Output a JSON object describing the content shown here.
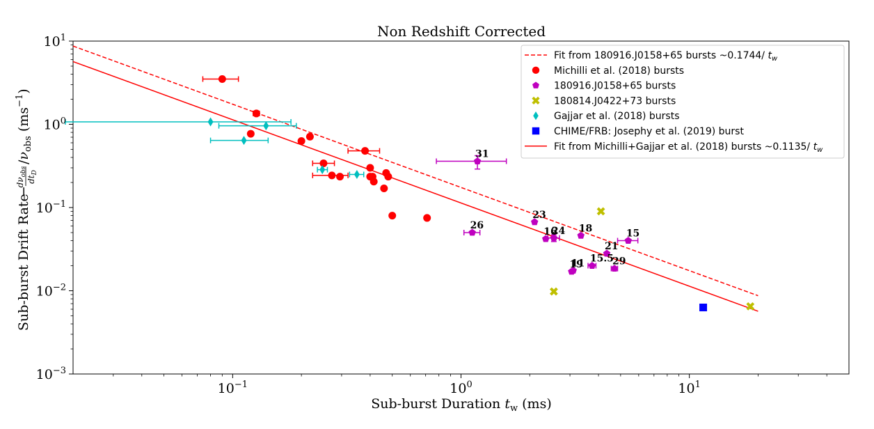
{
  "chart_data": {
    "type": "scatter",
    "title": "Non Redshift Corrected",
    "xlabel": "Sub-burst Duration t_w (ms)",
    "ylabel": "Sub-burst Drift Rate −(dν_obs/dt_D)/ν_obs (ms⁻¹)",
    "xscale": "log",
    "yscale": "log",
    "xlim": [
      0.02,
      50
    ],
    "ylim": [
      0.001,
      10
    ],
    "x_ticks": [
      {
        "value": 0.1,
        "base": "10",
        "exp": "−1"
      },
      {
        "value": 1,
        "base": "10",
        "exp": "0"
      },
      {
        "value": 10,
        "base": "10",
        "exp": "1"
      }
    ],
    "y_ticks": [
      {
        "value": 0.001,
        "base": "10",
        "exp": "−3"
      },
      {
        "value": 0.01,
        "base": "10",
        "exp": "−2"
      },
      {
        "value": 0.1,
        "base": "10",
        "exp": "−1"
      },
      {
        "value": 1,
        "base": "10",
        "exp": "0"
      },
      {
        "value": 10,
        "base": "10",
        "exp": "1"
      }
    ],
    "grid": false,
    "legend_position": "upper-right",
    "fit_lines": [
      {
        "name": "Fit from 180916.J0158+65 bursts ~0.1744/ t_w",
        "coef": 0.1744,
        "style": "dashed",
        "color": "#ff0000",
        "x_range": [
          0.02,
          20
        ]
      },
      {
        "name": "Fit from Michilli+Gajjar et al. (2018) bursts ~0.1135/ t_w",
        "coef": 0.1135,
        "style": "solid",
        "color": "#ff0000",
        "x_range": [
          0.02,
          20
        ]
      }
    ],
    "series": [
      {
        "name": "Michilli et al. (2018) bursts",
        "marker": "circle",
        "color": "#ff0000",
        "points": [
          {
            "x": 0.09,
            "y": 3.5,
            "xerr": [
              0.074,
              0.106
            ]
          },
          {
            "x": 0.127,
            "y": 1.35,
            "xerr": [
              0.123,
              0.131
            ]
          },
          {
            "x": 0.12,
            "y": 0.77
          },
          {
            "x": 0.218,
            "y": 0.71,
            "xerr": [
              0.213,
              0.223
            ]
          },
          {
            "x": 0.2,
            "y": 0.63
          },
          {
            "x": 0.25,
            "y": 0.34,
            "xerr": [
              0.224,
              0.279
            ]
          },
          {
            "x": 0.272,
            "y": 0.243,
            "xerr": [
              0.224,
              0.32
            ]
          },
          {
            "x": 0.295,
            "y": 0.235
          },
          {
            "x": 0.38,
            "y": 0.48,
            "xerr": [
              0.32,
              0.44
            ]
          },
          {
            "x": 0.4,
            "y": 0.3
          },
          {
            "x": 0.4,
            "y": 0.235
          },
          {
            "x": 0.41,
            "y": 0.235
          },
          {
            "x": 0.415,
            "y": 0.205
          },
          {
            "x": 0.47,
            "y": 0.26
          },
          {
            "x": 0.48,
            "y": 0.235
          },
          {
            "x": 0.46,
            "y": 0.17
          },
          {
            "x": 0.5,
            "y": 0.08
          },
          {
            "x": 0.71,
            "y": 0.075
          }
        ]
      },
      {
        "name": "180916.J0158+65 bursts",
        "marker": "pentagon",
        "color": "#bf00bf",
        "points": [
          {
            "x": 1.18,
            "y": 0.36,
            "label": "31",
            "xerr": [
              0.78,
              1.58
            ],
            "yerr": [
              0.29,
              0.42
            ]
          },
          {
            "x": 1.12,
            "y": 0.05,
            "label": "26",
            "xerr": [
              1.03,
              1.21
            ]
          },
          {
            "x": 2.1,
            "y": 0.067,
            "label": "23"
          },
          {
            "x": 2.35,
            "y": 0.042,
            "label": "16"
          },
          {
            "x": 2.55,
            "y": 0.043,
            "label": "24",
            "xerr": [
              2.4,
              2.7
            ],
            "yerr": [
              0.039,
              0.047
            ]
          },
          {
            "x": 3.35,
            "y": 0.046,
            "label": "18"
          },
          {
            "x": 5.4,
            "y": 0.04,
            "label": "15",
            "xerr": [
              4.85,
              5.95
            ]
          },
          {
            "x": 4.35,
            "y": 0.028,
            "label": "21"
          },
          {
            "x": 3.05,
            "y": 0.017,
            "label": "19"
          },
          {
            "x": 3.1,
            "y": 0.0175,
            "label": "11"
          },
          {
            "x": 3.75,
            "y": 0.02,
            "label": "15.5",
            "xerr": [
              3.6,
              3.9
            ]
          },
          {
            "x": 4.7,
            "y": 0.0185,
            "label": "29",
            "xerr": [
              4.55,
              4.85
            ]
          }
        ]
      },
      {
        "name": "180814.J0422+73 bursts",
        "marker": "x",
        "color": "#bfbf00",
        "points": [
          {
            "x": 4.1,
            "y": 0.09
          },
          {
            "x": 2.55,
            "y": 0.0098
          },
          {
            "x": 18.5,
            "y": 0.0065
          }
        ]
      },
      {
        "name": "Gajjar et al. (2018) bursts",
        "marker": "diamond",
        "color": "#00bfbf",
        "points": [
          {
            "x": 0.08,
            "y": 1.07,
            "xerr": [
              0.0185,
              0.18
            ]
          },
          {
            "x": 0.14,
            "y": 0.96,
            "xerr": [
              0.087,
              0.19
            ]
          },
          {
            "x": 0.112,
            "y": 0.64,
            "xerr": [
              0.08,
              0.143
            ]
          },
          {
            "x": 0.247,
            "y": 0.285,
            "xerr": [
              0.235,
              0.26
            ]
          },
          {
            "x": 0.35,
            "y": 0.25,
            "xerr": [
              0.325,
              0.375
            ]
          }
        ]
      },
      {
        "name": "CHIME/FRB: Josephy et al. (2019) burst",
        "marker": "square",
        "color": "#0000ff",
        "points": [
          {
            "x": 11.5,
            "y": 0.0063
          }
        ]
      }
    ],
    "legend_entries": [
      {
        "text": "Fit from 180916.J0158+65 bursts ~0.1744/ ",
        "var": "t",
        "sub": "w",
        "kind": "dashed-line",
        "color": "#ff0000"
      },
      {
        "text": "Michilli et al. (2018) bursts",
        "kind": "circle",
        "color": "#ff0000"
      },
      {
        "text": "180916.J0158+65 bursts",
        "kind": "pentagon",
        "color": "#bf00bf"
      },
      {
        "text": "180814.J0422+73 bursts",
        "kind": "x",
        "color": "#bfbf00"
      },
      {
        "text": "Gajjar et al. (2018) bursts",
        "kind": "diamond",
        "color": "#00bfbf"
      },
      {
        "text": "CHIME/FRB: Josephy et al. (2019) burst",
        "kind": "square",
        "color": "#0000ff"
      },
      {
        "text": "Fit from Michilli+Gajjar et al. (2018) bursts ~0.1135/ ",
        "var": "t",
        "sub": "w",
        "kind": "solid-line",
        "color": "#ff0000"
      }
    ]
  }
}
